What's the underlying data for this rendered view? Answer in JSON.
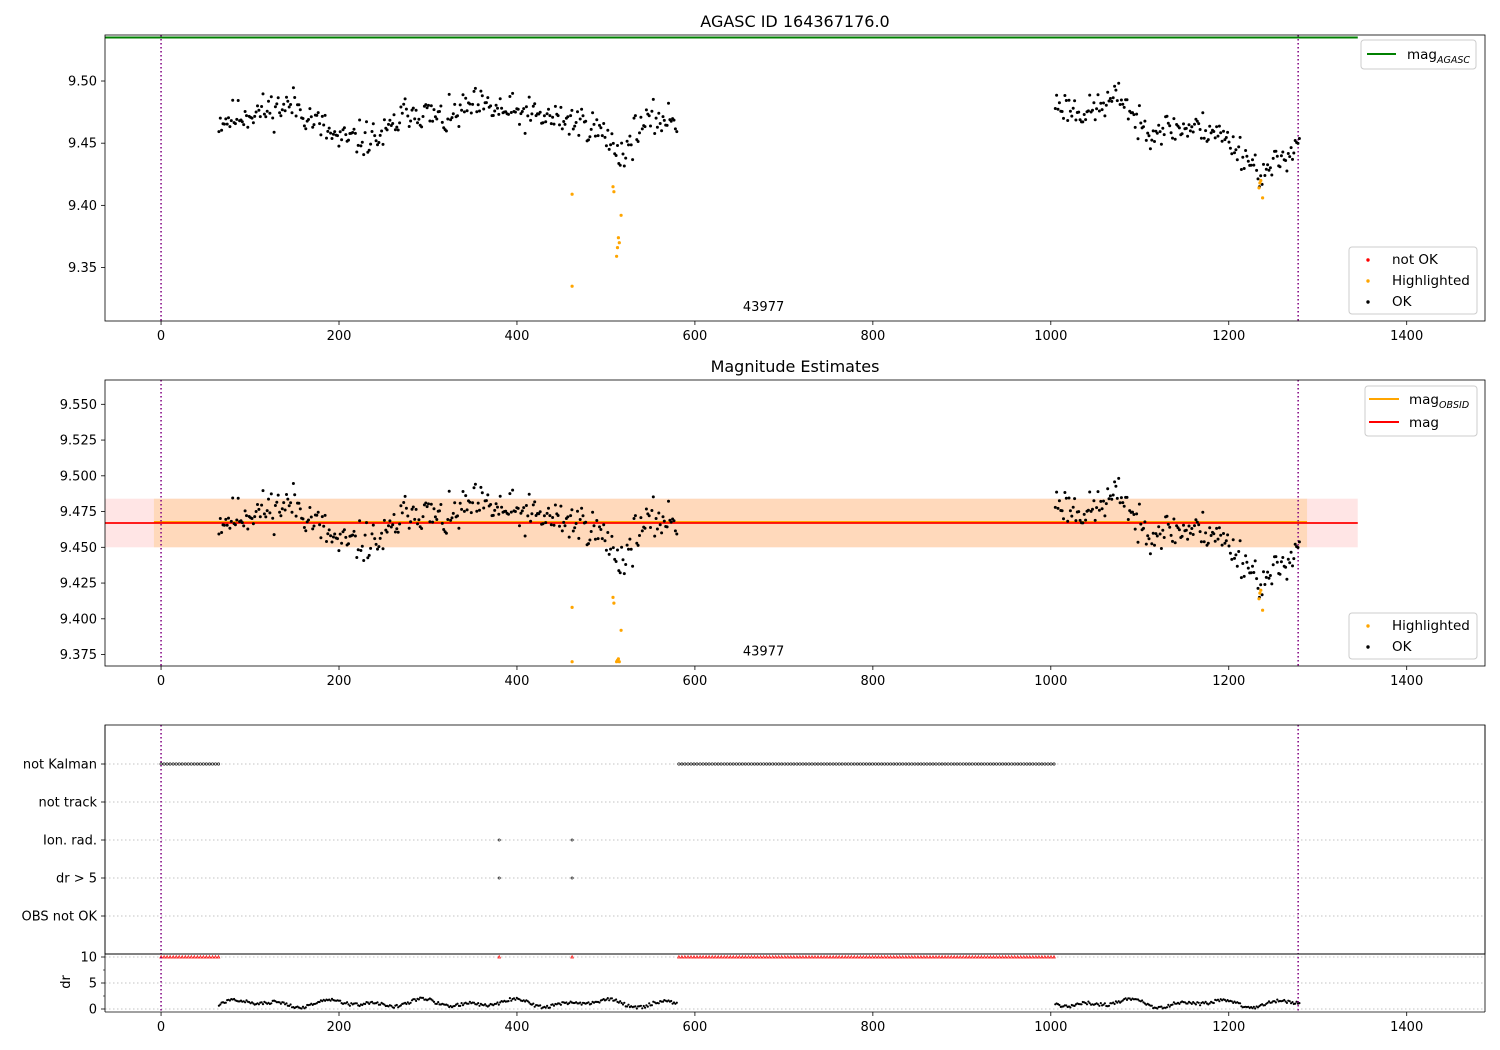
{
  "chart_data": [
    {
      "type": "scatter",
      "title": "AGASC ID 164367176.0",
      "xlim": [
        -63,
        1488
      ],
      "ylim": [
        9.307,
        9.537
      ],
      "xticks": [
        0,
        200,
        400,
        600,
        800,
        1000,
        1200,
        1400
      ],
      "yticks": [
        9.35,
        9.4,
        9.45,
        9.5
      ],
      "ytick_labels": [
        "9.35",
        "9.40",
        "9.45",
        "9.50"
      ],
      "mag_agasc": 9.535,
      "obsid_bounds": [
        0,
        1278
      ],
      "annotation": {
        "text": "43977",
        "x": 600,
        "y": 9.316
      },
      "line_legend": [
        {
          "label": "mag",
          "subscript": "AGASC",
          "color": "#008000"
        }
      ],
      "point_legend": [
        {
          "label": "not OK",
          "color": "#ff0000"
        },
        {
          "label": "Highlighted",
          "color": "#ffa500"
        },
        {
          "label": "OK",
          "color": "#000000"
        }
      ],
      "segments": [
        {
          "x_start": 65,
          "x_end": 580,
          "shape": [
            [
              65,
              9.468
            ],
            [
              100,
              9.474
            ],
            [
              150,
              9.481
            ],
            [
              200,
              9.452
            ],
            [
              250,
              9.455
            ],
            [
              280,
              9.478
            ],
            [
              320,
              9.468
            ],
            [
              350,
              9.48
            ],
            [
              400,
              9.474
            ],
            [
              440,
              9.47
            ],
            [
              480,
              9.466
            ],
            [
              500,
              9.455
            ],
            [
              520,
              9.44
            ],
            [
              535,
              9.462
            ],
            [
              560,
              9.47
            ],
            [
              580,
              9.468
            ]
          ],
          "noise": 0.012,
          "seed": 11
        },
        {
          "x_start": 1005,
          "x_end": 1280,
          "shape": [
            [
              1005,
              9.482
            ],
            [
              1040,
              9.474
            ],
            [
              1080,
              9.488
            ],
            [
              1100,
              9.462
            ],
            [
              1150,
              9.462
            ],
            [
              1180,
              9.462
            ],
            [
              1210,
              9.446
            ],
            [
              1240,
              9.424
            ],
            [
              1260,
              9.438
            ],
            [
              1280,
              9.452
            ]
          ],
          "noise": 0.011,
          "seed": 23
        }
      ],
      "highlighted_points": [
        [
          462,
          9.409
        ],
        [
          462,
          9.335
        ],
        [
          508,
          9.415
        ],
        [
          509,
          9.411
        ],
        [
          512,
          9.359
        ],
        [
          513,
          9.366
        ],
        [
          514,
          9.374
        ],
        [
          515,
          9.37
        ],
        [
          517,
          9.392
        ],
        [
          1234,
          9.414
        ],
        [
          1235,
          9.418
        ],
        [
          1236,
          9.42
        ],
        [
          1238,
          9.406
        ]
      ]
    },
    {
      "type": "scatter",
      "title": "Magnitude Estimates",
      "xlim": [
        -63,
        1488
      ],
      "ylim": [
        9.367,
        9.567
      ],
      "xticks": [
        0,
        200,
        400,
        600,
        800,
        1000,
        1200,
        1400
      ],
      "yticks": [
        9.375,
        9.4,
        9.425,
        9.45,
        9.475,
        9.5,
        9.525,
        9.55
      ],
      "ytick_labels": [
        "9.375",
        "9.400",
        "9.425",
        "9.450",
        "9.475",
        "9.500",
        "9.525",
        "9.550"
      ],
      "mag": 9.467,
      "mag_band": [
        9.45,
        9.484
      ],
      "mag_obsid": 9.467,
      "obsid_band": [
        9.45,
        9.484
      ],
      "obsid_bounds": [
        0,
        1278
      ],
      "annotation": {
        "text": "43977",
        "x": 600,
        "y": 9.375
      },
      "line_legend": [
        {
          "label": "mag",
          "subscript": "OBSID",
          "color": "#ffa500"
        },
        {
          "label": "mag",
          "subscript": "",
          "color": "#ff0000"
        }
      ],
      "point_legend": [
        {
          "label": "Highlighted",
          "color": "#ffa500"
        },
        {
          "label": "OK",
          "color": "#000000"
        }
      ],
      "highlighted_points": [
        [
          462,
          9.408
        ],
        [
          462,
          9.37
        ],
        [
          508,
          9.415
        ],
        [
          509,
          9.411
        ],
        [
          512,
          9.37
        ],
        [
          513,
          9.371
        ],
        [
          514,
          9.372
        ],
        [
          515,
          9.37
        ],
        [
          517,
          9.392
        ],
        [
          1234,
          9.414
        ],
        [
          1235,
          9.418
        ],
        [
          1236,
          9.42
        ],
        [
          1238,
          9.406
        ]
      ]
    },
    {
      "type": "scatter",
      "xlim": [
        -63,
        1488
      ],
      "flag_rows": [
        "not Kalman",
        "not track",
        "Ion. rad.",
        "dr > 5",
        "OBS not OK"
      ],
      "flags": {
        "not Kalman": [
          [
            0,
            65
          ],
          [
            582,
            1005
          ]
        ],
        "Ion. rad.": [
          380,
          462
        ],
        "dr > 5": [
          380,
          462
        ]
      },
      "dr_ylabel": "dr",
      "dr_yticks": [
        0,
        5,
        10
      ],
      "dr_clip_value": 10,
      "dr_clipped_ranges": [
        [
          0,
          65
        ],
        [
          380,
          380
        ],
        [
          462,
          462
        ],
        [
          582,
          1005
        ]
      ],
      "dr_segments": [
        [
          65,
          580
        ],
        [
          1005,
          1280
        ]
      ],
      "xticks": [
        0,
        200,
        400,
        600,
        800,
        1000,
        1200,
        1400
      ],
      "obsid_bounds": [
        0,
        1278
      ]
    }
  ]
}
